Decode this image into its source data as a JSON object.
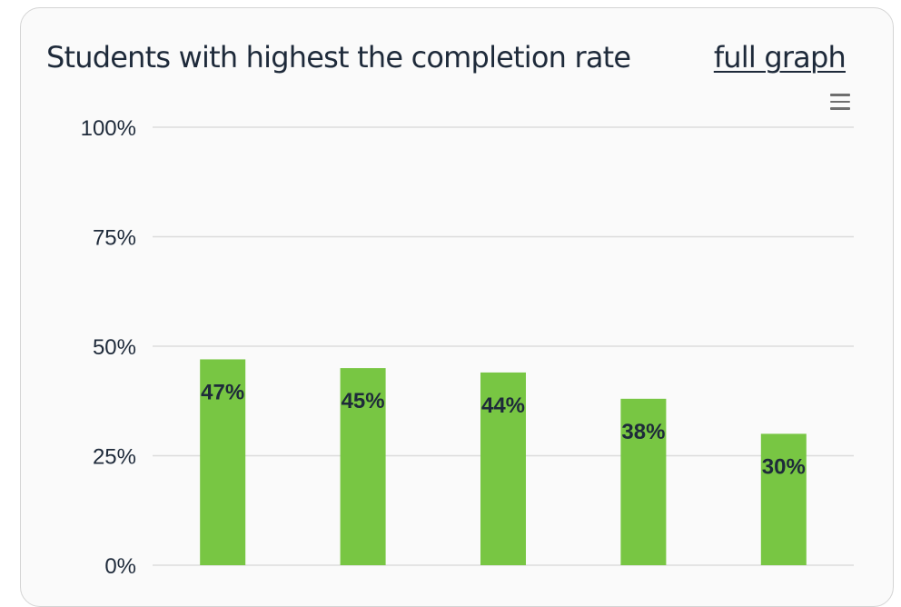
{
  "card": {
    "title": "Students with highest the completion rate",
    "link_label": "full graph",
    "menu_icon": "hamburger-menu-icon"
  },
  "colors": {
    "bar": "#78c643",
    "grid": "#dcdcdc",
    "text": "#1e2a3a"
  },
  "chart_data": {
    "type": "bar",
    "title": "Students with highest the completion rate",
    "categories": [
      "",
      "",
      "",
      "",
      ""
    ],
    "values": [
      47,
      45,
      44,
      38,
      30
    ],
    "data_labels": [
      "47%",
      "45%",
      "44%",
      "38%",
      "30%"
    ],
    "xlabel": "",
    "ylabel": "",
    "ylim": [
      0,
      100
    ],
    "yticks": [
      0,
      25,
      50,
      75,
      100
    ],
    "ytick_labels": [
      "0%",
      "25%",
      "50%",
      "75%",
      "100%"
    ],
    "grid": true,
    "legend": "none"
  }
}
